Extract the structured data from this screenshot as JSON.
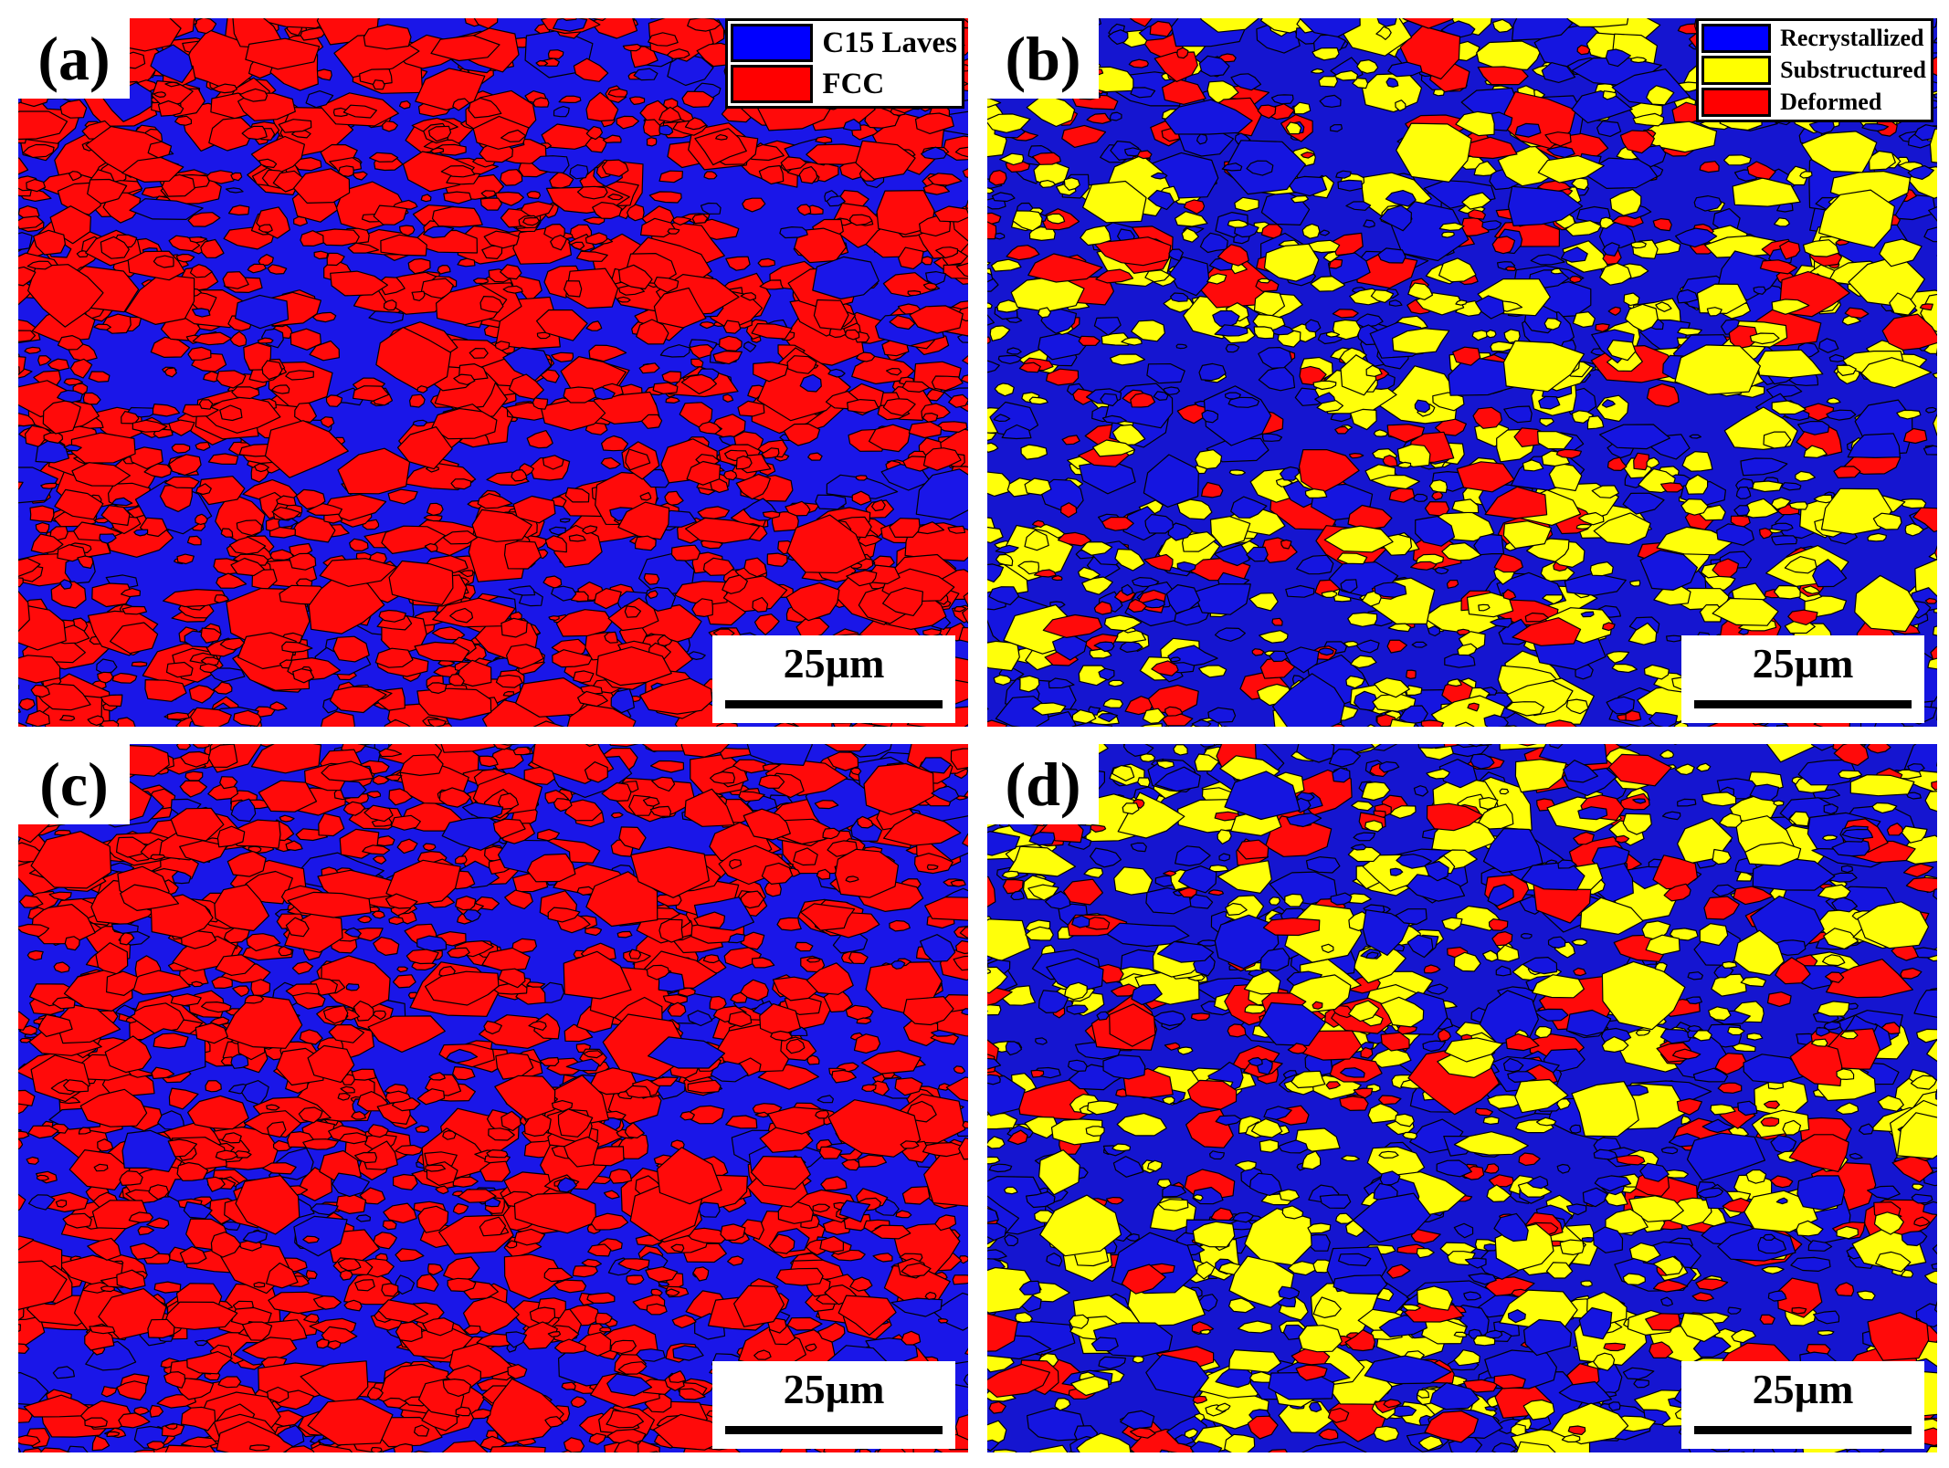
{
  "figure": {
    "panels": [
      {
        "id": "a",
        "label": "(a)",
        "map_type": "phase",
        "scale_bar": "25µm",
        "legend": [
          {
            "label": "C15 Laves",
            "color": "#0000ff"
          },
          {
            "label": "FCC",
            "color": "#ff0000"
          }
        ]
      },
      {
        "id": "b",
        "label": "(b)",
        "map_type": "recrystallization",
        "scale_bar": "25µm",
        "legend": [
          {
            "label": "Recrystallized",
            "color": "#0000ff"
          },
          {
            "label": "Substructured",
            "color": "#ffff00"
          },
          {
            "label": "Deformed",
            "color": "#ff0000"
          }
        ]
      },
      {
        "id": "c",
        "label": "(c)",
        "map_type": "phase",
        "scale_bar": "25µm",
        "legend": []
      },
      {
        "id": "d",
        "label": "(d)",
        "map_type": "recrystallization",
        "scale_bar": "25µm",
        "legend": []
      }
    ]
  }
}
